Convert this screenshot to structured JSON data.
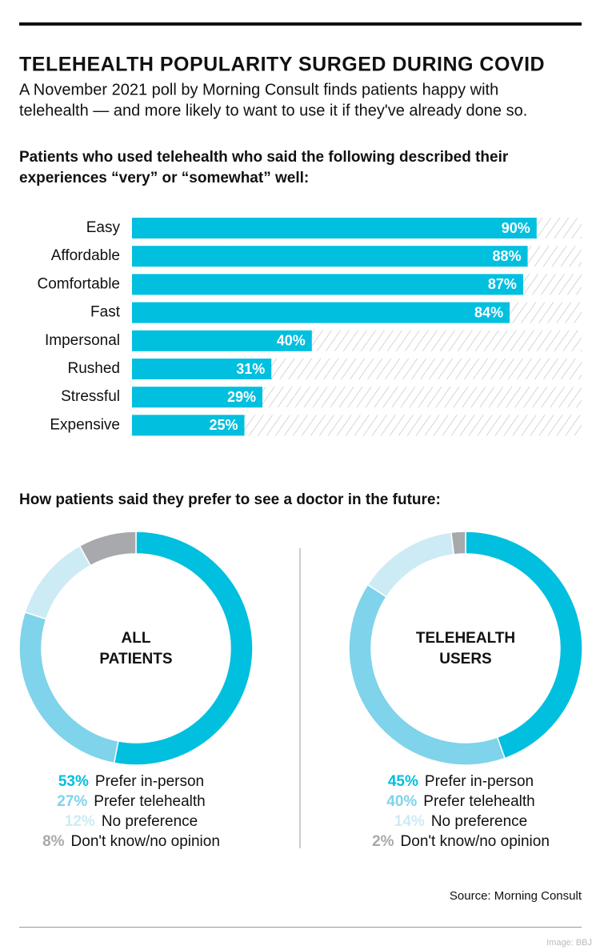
{
  "header": {
    "title": "TELEHEALTH POPULARITY SURGED DURING COVID",
    "subtitle": [
      "A November 2021 poll by Morning Consult finds patients happy with",
      "telehealth — and more likely to want to use it if they've already done so."
    ]
  },
  "chart_data": [
    {
      "type": "bar",
      "orientation": "horizontal",
      "title": [
        "Patients who used telehealth who said the following described their",
        "experiences “very” or “somewhat” well:"
      ],
      "categories": [
        "Easy",
        "Affordable",
        "Comfortable",
        "Fast",
        "Impersonal",
        "Rushed",
        "Stressful",
        "Expensive"
      ],
      "values": [
        90,
        88,
        87,
        84,
        40,
        31,
        29,
        25
      ],
      "value_labels": [
        "90%",
        "88%",
        "87%",
        "84%",
        "40%",
        "31%",
        "29%",
        "25%"
      ],
      "color": "#00bfdf",
      "xlim": [
        0,
        100
      ]
    },
    {
      "type": "donut",
      "title": "How patients said they prefer to see a doctor in the future:",
      "center_label": [
        "ALL",
        "PATIENTS"
      ],
      "categories": [
        "Prefer in-person",
        "Prefer telehealth",
        "No preference",
        "Don't know/no opinion"
      ],
      "values": [
        53,
        27,
        12,
        8
      ],
      "value_labels": [
        "53%",
        "27%",
        "12%",
        "8%"
      ],
      "colors": [
        "#00bfdf",
        "#7fd3ea",
        "#cdebf5",
        "#a7a9ac"
      ]
    },
    {
      "type": "donut",
      "center_label": [
        "TELEHEALTH",
        "USERS"
      ],
      "categories": [
        "Prefer in-person",
        "Prefer telehealth",
        "No preference",
        "Don't know/no opinion"
      ],
      "values": [
        45,
        40,
        14,
        2
      ],
      "value_labels": [
        "45%",
        "40%",
        "14%",
        "2%"
      ],
      "colors": [
        "#00bfdf",
        "#7fd3ea",
        "#cdebf5",
        "#a7a9ac"
      ]
    }
  ],
  "source": "Source: Morning Consult",
  "credit": "Image: BBJ"
}
